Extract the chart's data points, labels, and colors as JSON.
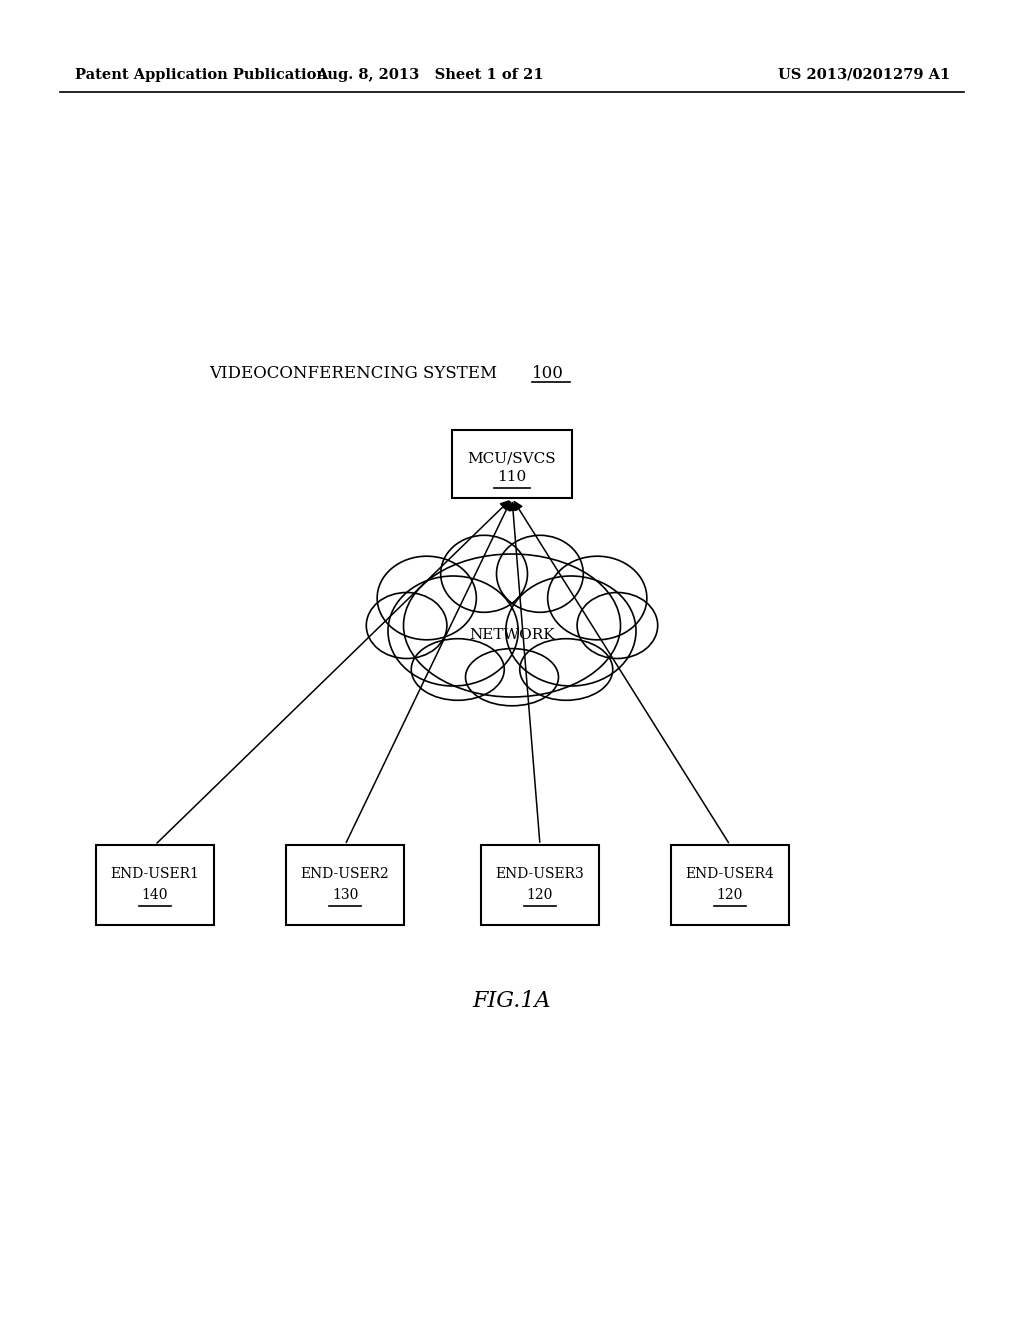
{
  "bg_color": "#ffffff",
  "header_left": "Patent Application Publication",
  "header_center": "Aug. 8, 2013   Sheet 1 of 21",
  "header_right": "US 2013/0201279 A1",
  "system_label": "VIDEOCONFERENCING SYSTEM",
  "system_label_number": "100",
  "mcu_label_line1": "MCU/SVCS",
  "mcu_label_line2": "110",
  "network_label": "NETWORK",
  "end_users": [
    {
      "label_line1": "END-USER1",
      "label_line2": "140"
    },
    {
      "label_line1": "END-USER2",
      "label_line2": "130"
    },
    {
      "label_line1": "END-USER3",
      "label_line2": "120"
    },
    {
      "label_line1": "END-USER4",
      "label_line2": "120"
    }
  ],
  "fig_label": "FIG.1A"
}
